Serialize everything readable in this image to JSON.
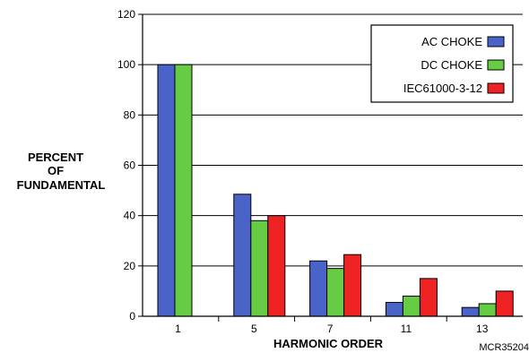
{
  "chart_data": {
    "type": "bar",
    "title": "",
    "xlabel": "HARMONIC ORDER",
    "ylabel_lines": [
      "PERCENT",
      "OF",
      "FUNDAMENTAL"
    ],
    "categories": [
      "1",
      "5",
      "7",
      "11",
      "13"
    ],
    "ylim": [
      0,
      120
    ],
    "yticks": [
      0,
      20,
      40,
      60,
      80,
      100,
      120
    ],
    "grid": true,
    "legend_position": "top-right",
    "series": [
      {
        "name": "AC CHOKE",
        "color": "#4a63c8",
        "values": [
          100,
          48.5,
          22,
          5.5,
          3.5
        ]
      },
      {
        "name": "DC CHOKE",
        "color": "#66cc44",
        "values": [
          100,
          38,
          19,
          8,
          5
        ]
      },
      {
        "name": "IEC61000-3-12",
        "color": "#ee2222",
        "values": [
          null,
          40,
          24.5,
          15,
          10
        ]
      }
    ],
    "figure_code": "MCR35204"
  }
}
